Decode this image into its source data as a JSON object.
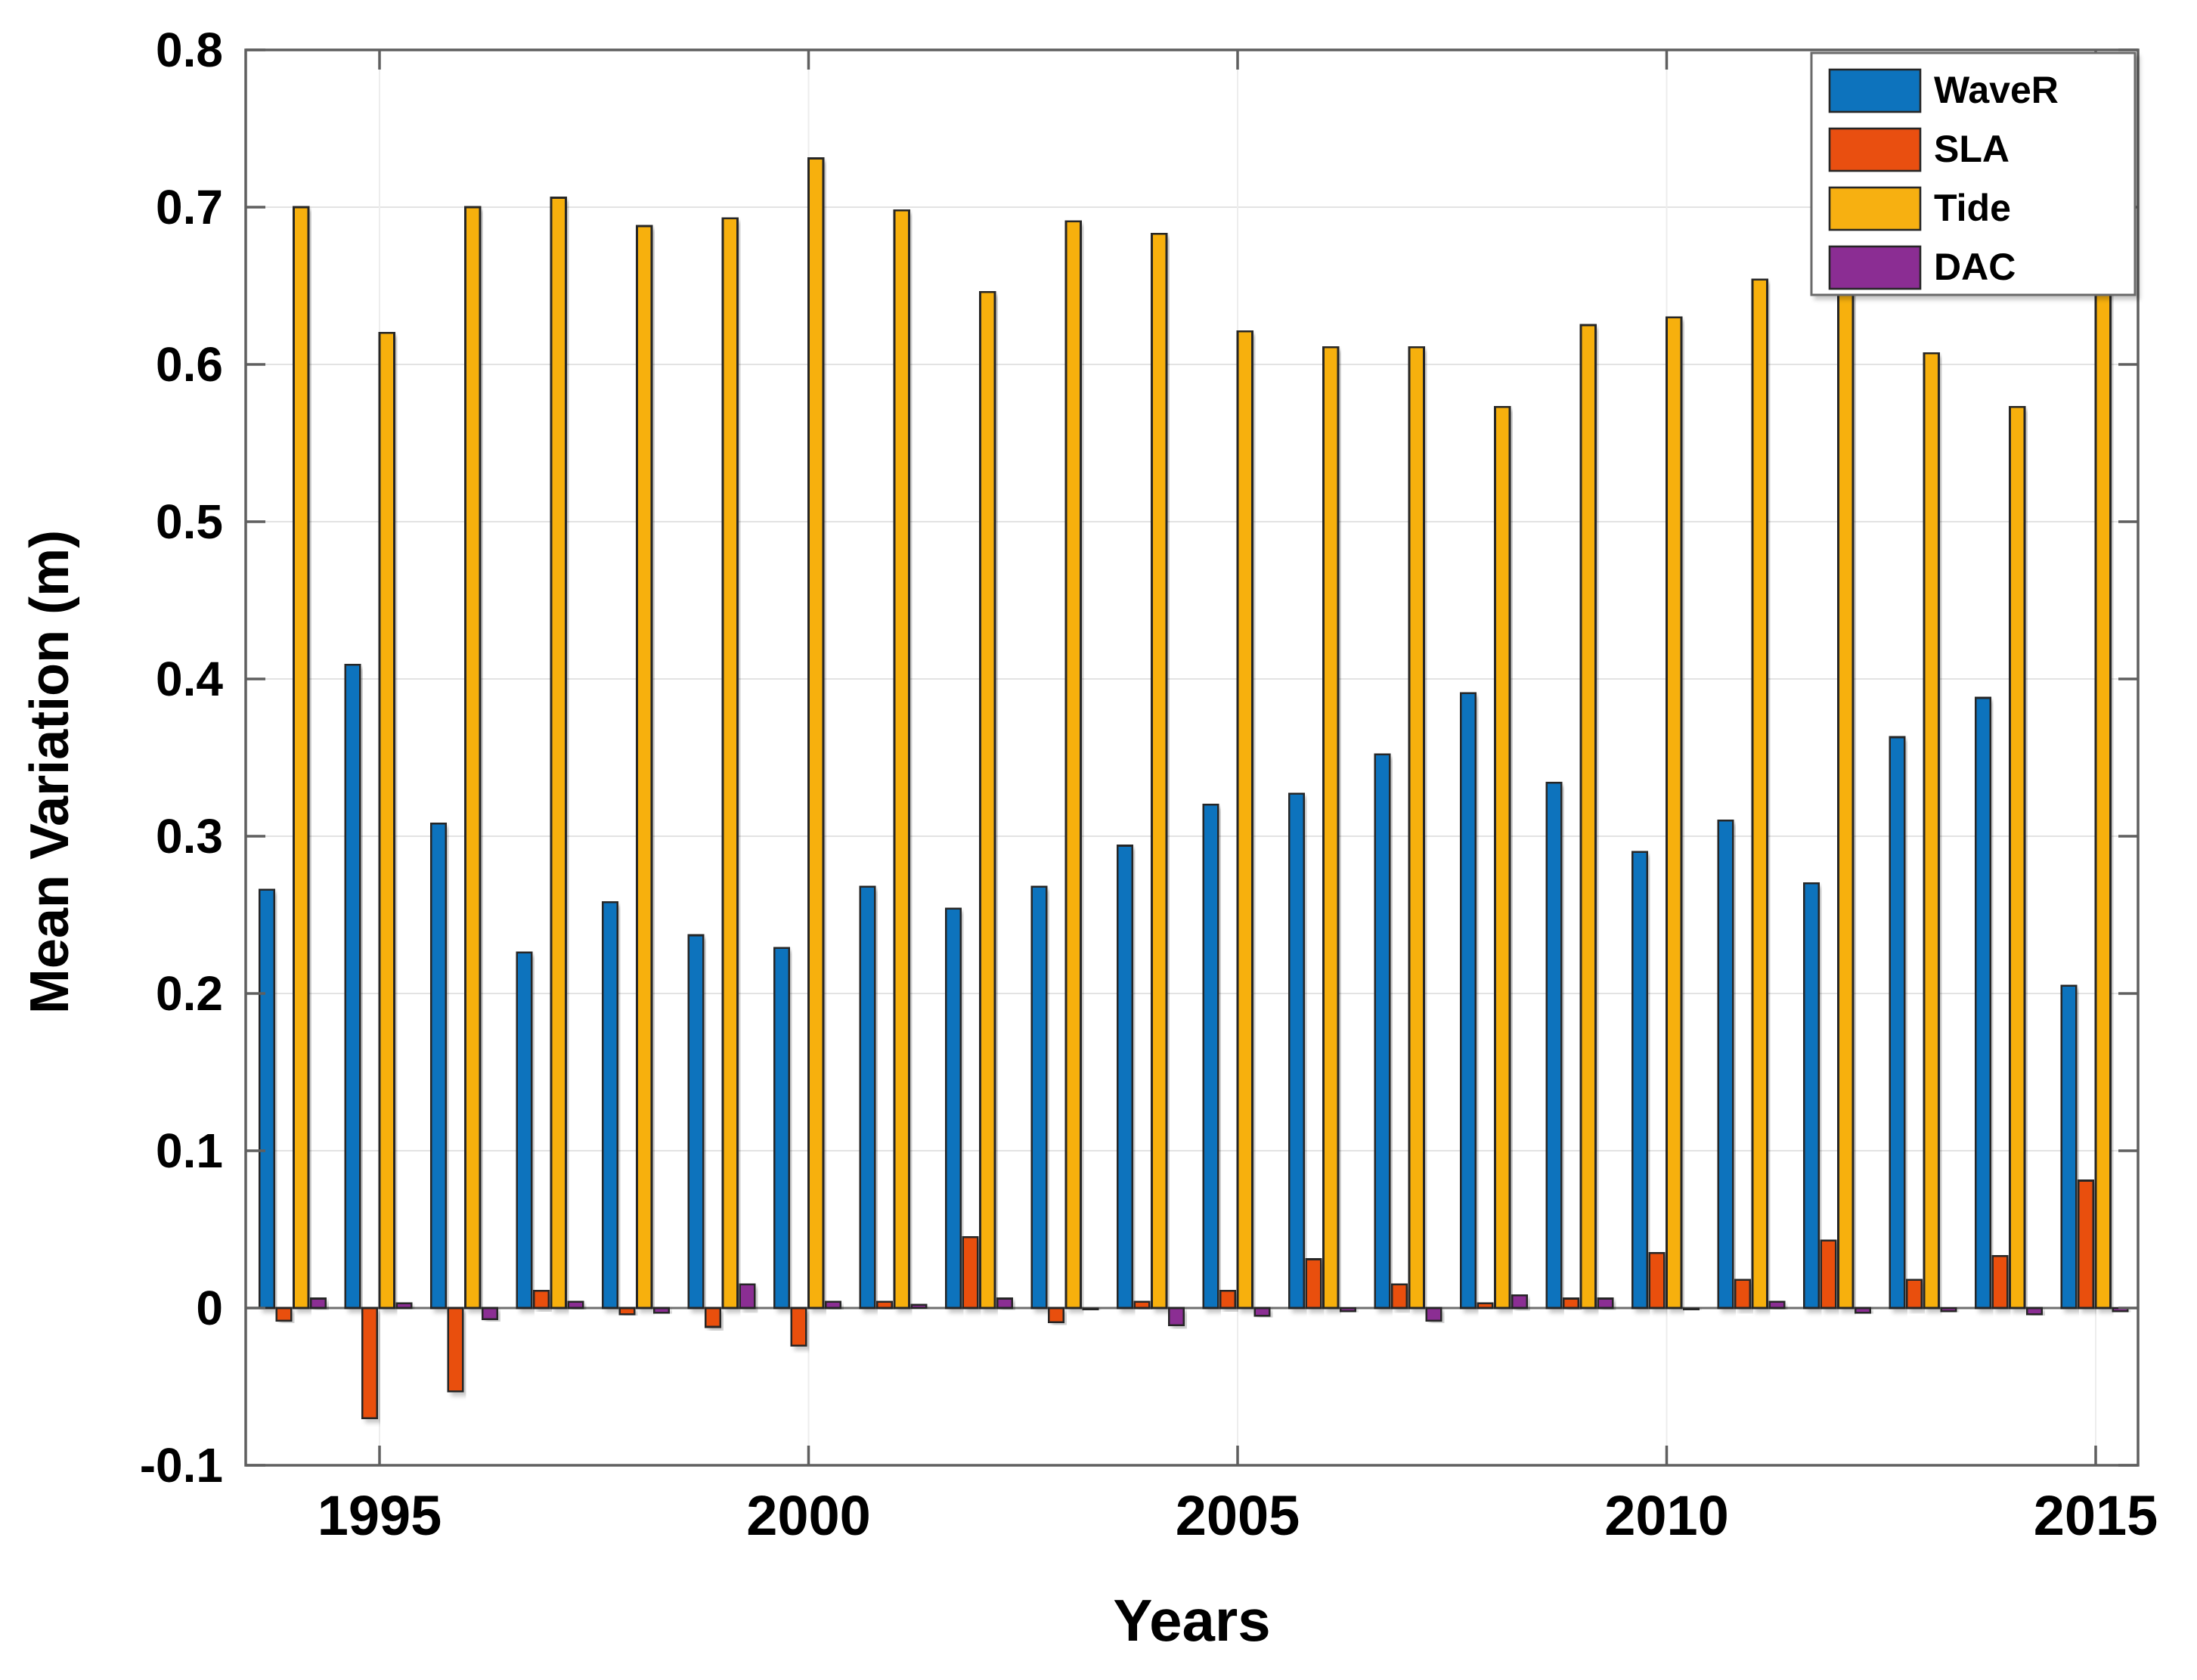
{
  "figure": {
    "background": "#ffffff"
  },
  "chart_data": {
    "type": "bar",
    "title": "",
    "xlabel": "Years",
    "ylabel": "Mean Variation (m)",
    "ylim": [
      -0.1,
      0.8
    ],
    "ytick_step": 0.1,
    "ytick_labels": [
      "0.8",
      "0.7",
      "0.6",
      "0.5",
      "0.4",
      "0.3",
      "0.2",
      "0.1",
      "0",
      "-0.1"
    ],
    "xtick_labels": [
      "1995",
      "2000",
      "2005",
      "2010",
      "2015"
    ],
    "xticks": [
      1995,
      2000,
      2005,
      2010,
      2015
    ],
    "grid": true,
    "legend_position": "top-right",
    "legend_entries": [
      "WaveR",
      "SLA",
      "Tide",
      "DAC"
    ],
    "categories": [
      1994,
      1995,
      1996,
      1997,
      1998,
      1999,
      2000,
      2001,
      2002,
      2003,
      2004,
      2005,
      2006,
      2007,
      2008,
      2009,
      2010,
      2011,
      2012,
      2013,
      2014,
      2015
    ],
    "series": [
      {
        "name": "WaveR",
        "color": "#0d73bd",
        "values": [
          0.266,
          0.409,
          0.308,
          0.226,
          0.258,
          0.237,
          0.229,
          0.268,
          0.254,
          0.268,
          0.294,
          0.32,
          0.327,
          0.352,
          0.391,
          0.334,
          0.29,
          0.31,
          0.27,
          0.363,
          0.388,
          0.205
        ]
      },
      {
        "name": "SLA",
        "color": "#e94f10",
        "values": [
          -0.008,
          -0.07,
          -0.053,
          0.011,
          -0.004,
          -0.012,
          -0.024,
          0.004,
          0.045,
          -0.009,
          0.004,
          0.011,
          0.031,
          0.015,
          0.003,
          0.006,
          0.035,
          0.018,
          0.043,
          0.018,
          0.033,
          0.081
        ]
      },
      {
        "name": "Tide",
        "color": "#f7b011",
        "values": [
          0.7,
          0.62,
          0.7,
          0.706,
          0.688,
          0.693,
          0.731,
          0.698,
          0.646,
          0.691,
          0.683,
          0.621,
          0.611,
          0.611,
          0.573,
          0.625,
          0.63,
          0.654,
          0.655,
          0.607,
          0.573,
          0.683
        ]
      },
      {
        "name": "DAC",
        "color": "#8b2d93",
        "values": [
          0.006,
          0.003,
          -0.007,
          0.004,
          -0.003,
          0.015,
          0.004,
          0.002,
          0.006,
          -0.001,
          -0.011,
          -0.005,
          -0.002,
          -0.008,
          0.008,
          0.006,
          -0.001,
          0.004,
          -0.003,
          -0.002,
          -0.004,
          -0.002
        ]
      }
    ],
    "bar_edge_color": "#262626",
    "axis_color": "#5f5f5f",
    "grid_color": "#e3e3e3",
    "vgrid_color": "#ededed",
    "zero_line_color": "#6f6f6f",
    "tick_label_color": "#000000"
  }
}
